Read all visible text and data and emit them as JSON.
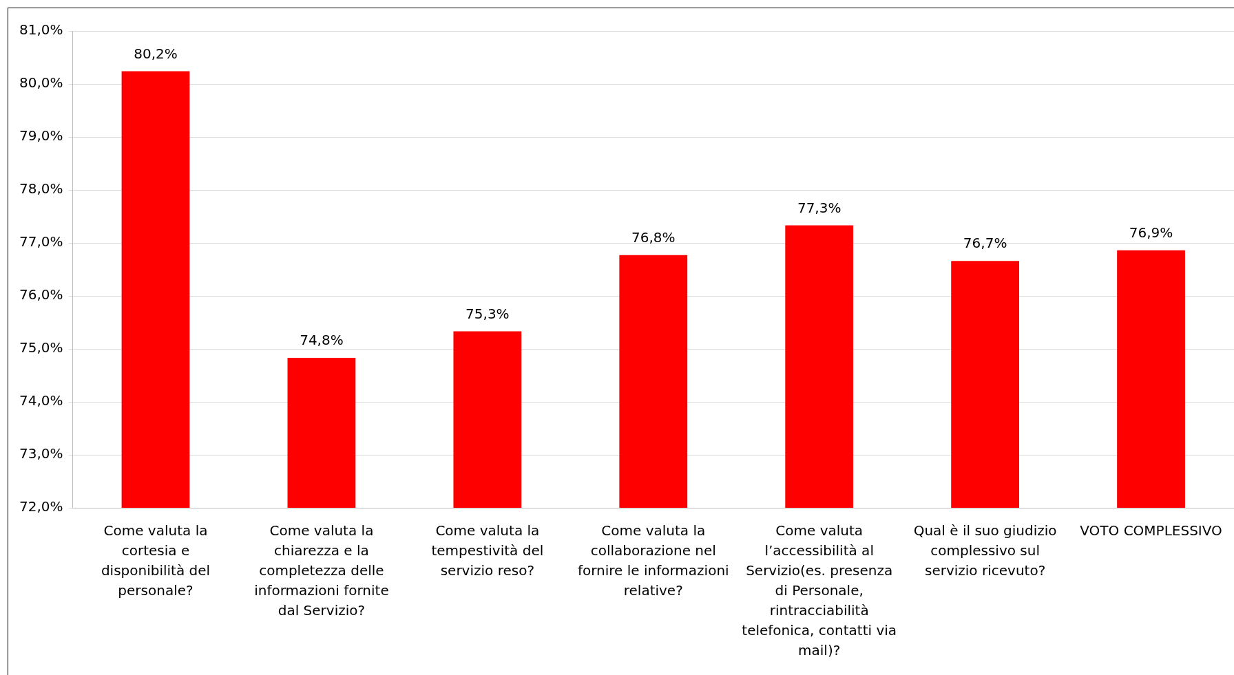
{
  "chart_data": {
    "type": "bar",
    "categories": [
      "Come valuta la cortesia e disponibilità del personale?",
      "Come valuta la chiarezza e la completezza delle informazioni fornite dal Servizio?",
      "Come valuta la tempestività del servizio reso?",
      "Come valuta la collaborazione nel fornire le informazioni relative?",
      "Come valuta l’accessibilità al Servizio(es. presenza di Personale, rintracciabilità telefonica, contatti via mail)?",
      "Qual è il suo giudizio complessivo sul servizio ricevuto?",
      "VOTO COMPLESSIVO"
    ],
    "values": [
      80.24,
      74.83,
      75.33,
      76.77,
      77.33,
      76.66,
      76.86
    ],
    "value_labels": [
      "80,2%",
      "74,8%",
      "75,3%",
      "76,8%",
      "77,3%",
      "76,7%",
      "76,9%"
    ],
    "color": "#ff0000",
    "ylim": [
      72,
      81
    ],
    "yticks": [
      {
        "value": 72,
        "label": "72,0%"
      },
      {
        "value": 73,
        "label": "73,0%"
      },
      {
        "value": 74,
        "label": "74,0%"
      },
      {
        "value": 75,
        "label": "75,0%"
      },
      {
        "value": 76,
        "label": "76,0%"
      },
      {
        "value": 77,
        "label": "77,0%"
      },
      {
        "value": 78,
        "label": "78,0%"
      },
      {
        "value": 79,
        "label": "79,0%"
      },
      {
        "value": 80,
        "label": "80,0%"
      },
      {
        "value": 81,
        "label": "81,0%"
      }
    ],
    "grid": "y",
    "legend": false
  }
}
